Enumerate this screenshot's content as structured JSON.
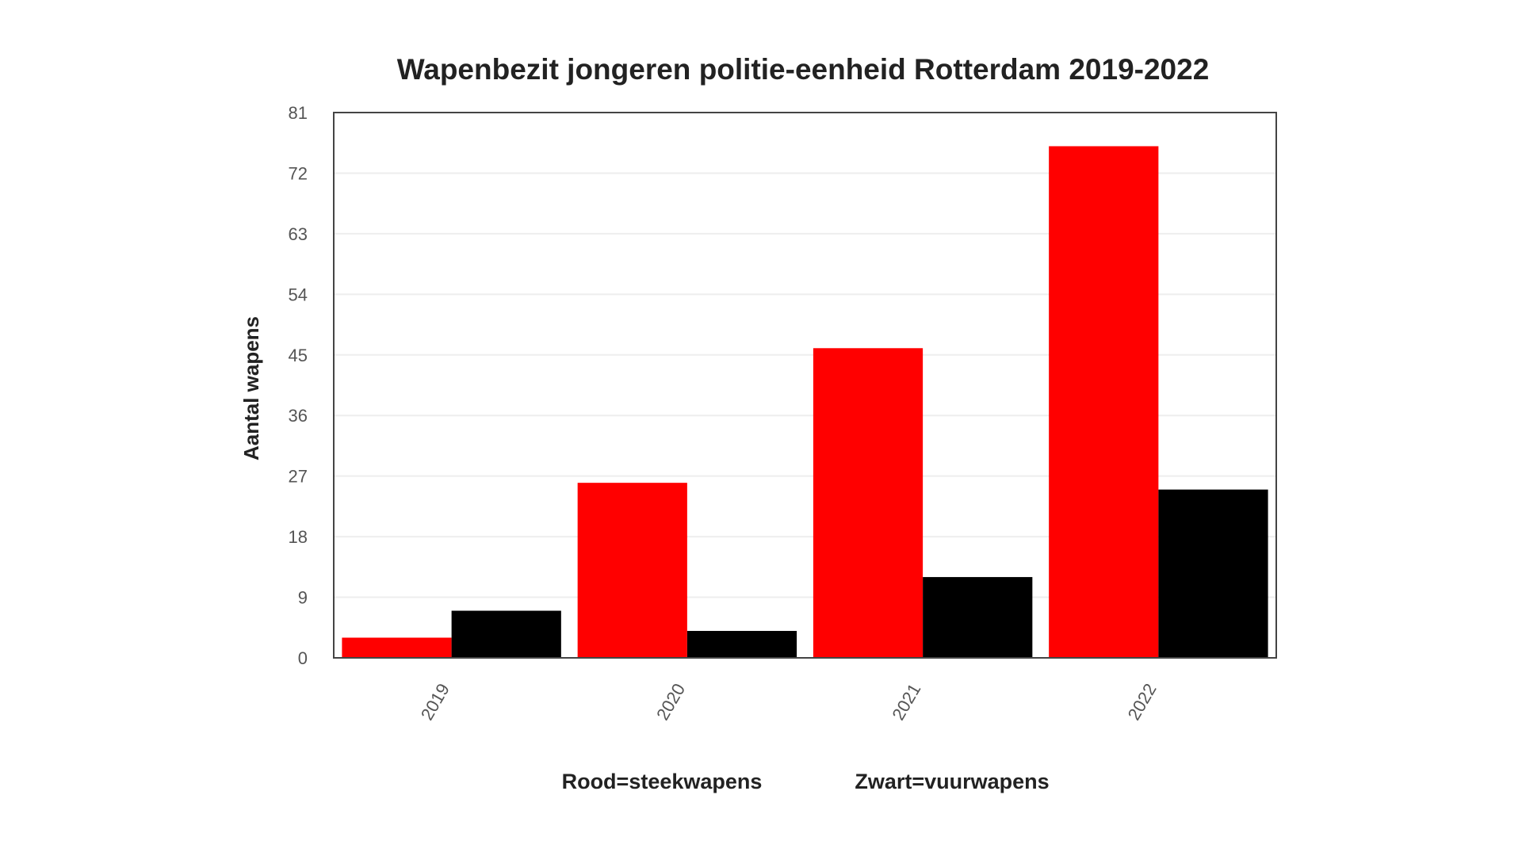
{
  "chart_data": {
    "type": "bar",
    "title": "Wapenbezit jongeren politie-eenheid Rotterdam 2019-2022",
    "xlabel": "",
    "ylabel": "Aantal wapens",
    "categories": [
      "2019",
      "2020",
      "2021",
      "2022"
    ],
    "series": [
      {
        "values": [
          3,
          26,
          46,
          76
        ],
        "color": "#ff0000"
      },
      {
        "values": [
          7,
          4,
          12,
          25
        ],
        "color": "#000000"
      }
    ],
    "ylim": [
      0,
      81
    ],
    "yticks": [
      "0",
      "9",
      "18",
      "27",
      "36",
      "45",
      "54",
      "63",
      "72",
      "81"
    ],
    "grid": true,
    "legend_notes": [
      "Rood=steekwapens",
      "Zwart=vuurwapens"
    ]
  }
}
